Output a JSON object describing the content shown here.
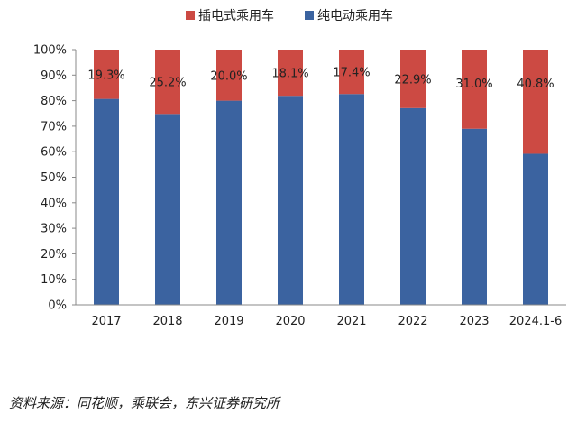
{
  "chart_data": {
    "type": "bar",
    "stacked": true,
    "categories": [
      "2017",
      "2018",
      "2019",
      "2020",
      "2021",
      "2022",
      "2023",
      "2024.1-6"
    ],
    "series": [
      {
        "name": "纯电动乘用车",
        "color": "#3b63a0",
        "values": [
          80.7,
          74.8,
          80.0,
          81.9,
          82.6,
          77.1,
          69.0,
          59.2
        ]
      },
      {
        "name": "插电式乘用车",
        "color": "#cc4a43",
        "values": [
          19.3,
          25.2,
          20.0,
          18.1,
          17.4,
          22.9,
          31.0,
          40.8
        ]
      }
    ],
    "data_labels": [
      "19.3%",
      "25.2%",
      "20.0%",
      "18.1%",
      "17.4%",
      "22.9%",
      "31.0%",
      "40.8%"
    ],
    "y_ticks": [
      "0%",
      "10%",
      "20%",
      "30%",
      "40%",
      "50%",
      "60%",
      "70%",
      "80%",
      "90%",
      "100%"
    ],
    "ylim": [
      0,
      100
    ],
    "legend_position": "top",
    "grid": false
  },
  "legend_order": [
    1,
    0
  ],
  "source_text": "资料来源：同花顺，乘联会，东兴证券研究所"
}
